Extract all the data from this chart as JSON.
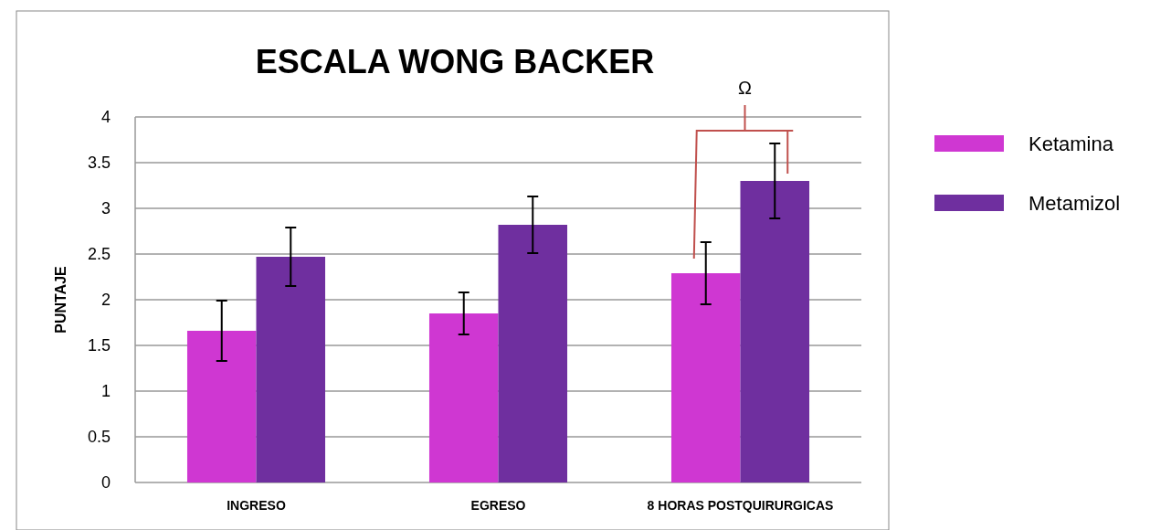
{
  "chart_data": {
    "type": "bar",
    "title": "ESCALA WONG BACKER",
    "ylabel": "PUNTAJE",
    "categories": [
      "INGRESO",
      "EGRESO",
      "8 HORAS POSTQUIRURGICAS"
    ],
    "series": [
      {
        "name": "Ketamina",
        "color": "#cf37d2",
        "values": [
          1.66,
          1.85,
          2.29
        ],
        "errors": [
          0.33,
          0.23,
          0.34
        ]
      },
      {
        "name": "Metamizol",
        "color": "#6f2f9f",
        "values": [
          2.47,
          2.82,
          3.3
        ],
        "errors": [
          0.32,
          0.31,
          0.41
        ]
      }
    ],
    "ylim": [
      0,
      4
    ],
    "yticks": [
      0,
      0.5,
      1,
      1.5,
      2,
      2.5,
      3,
      3.5,
      4
    ],
    "grid": "y",
    "legend": "right",
    "annotations": [
      "Ω"
    ]
  }
}
